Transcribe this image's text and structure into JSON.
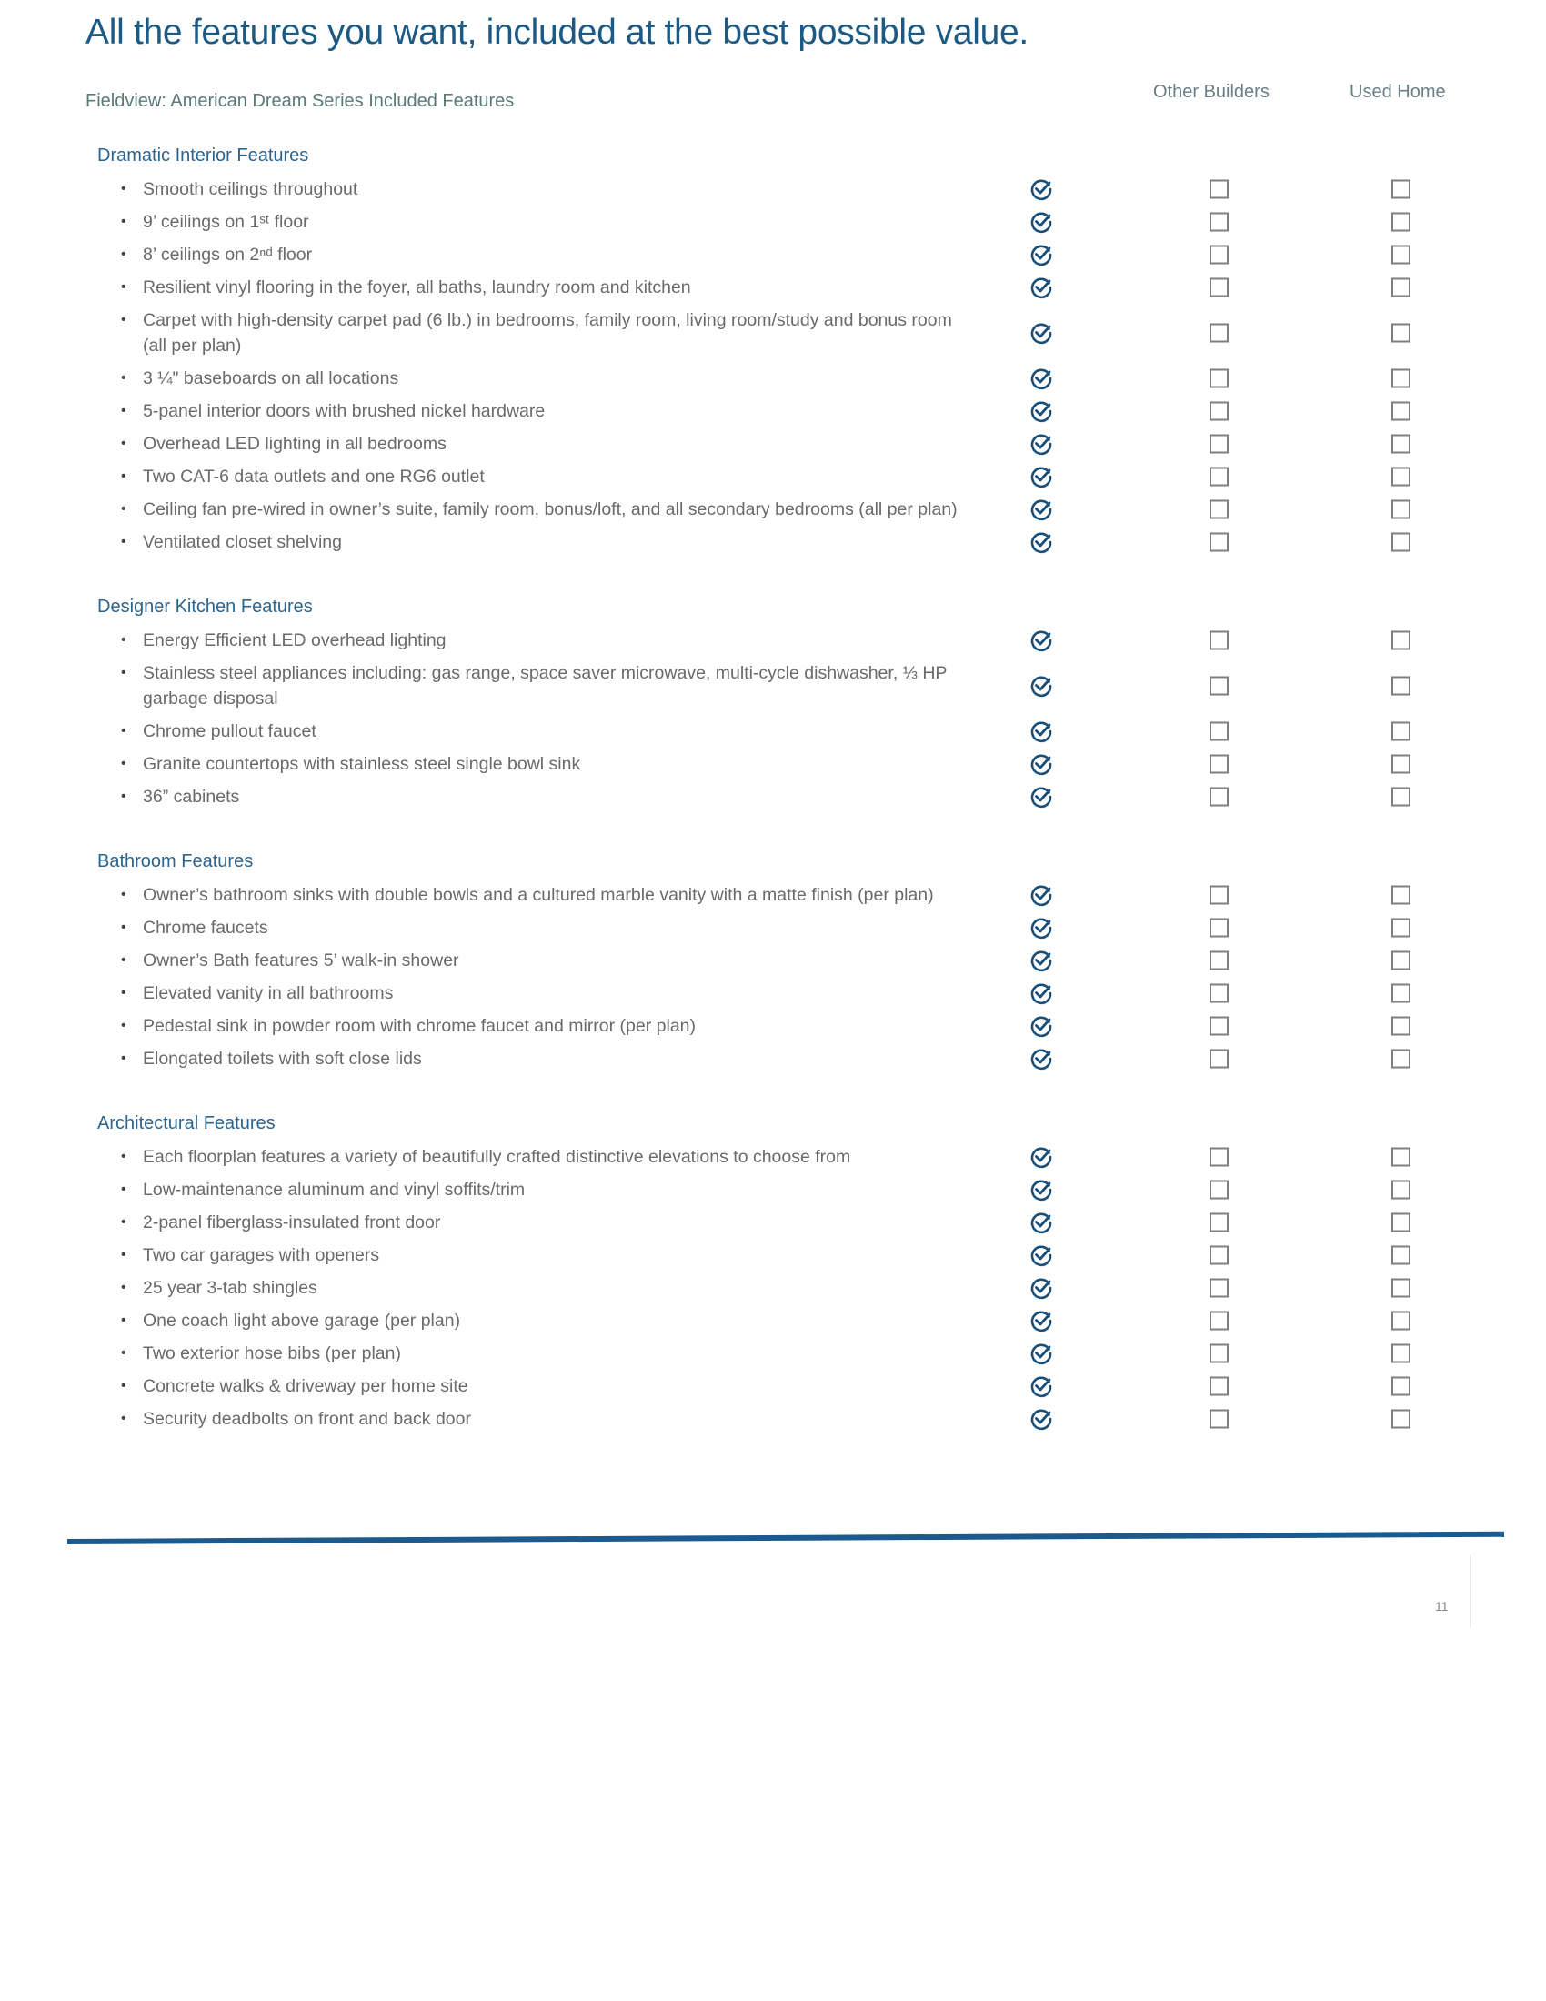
{
  "header": {
    "title": "All the features you want, included at the best possible value.",
    "subtitle": "Fieldview: American Dream Series Included Features",
    "columns": [
      "Other Builders",
      "Used Home"
    ]
  },
  "colors": {
    "accent": "#1c5a86",
    "check": "#1c4f78",
    "text": "#6a6a6a"
  },
  "icons": {
    "included": "circle-check-icon",
    "not_included": "empty-checkbox-icon"
  },
  "sections": [
    {
      "heading": "Dramatic Interior Features",
      "items": [
        "Smooth ceilings throughout",
        "9’ ceilings on 1ˢᵗ floor",
        "8’ ceilings on 2ⁿᵈ floor",
        "Resilient vinyl flooring in the foyer, all baths, laundry room and kitchen",
        "Carpet with high-density carpet pad (6 lb.) in bedrooms, family room, living room/study and bonus room (all per plan)",
        "3 ¼\" baseboards on all locations",
        "5-panel interior doors with brushed nickel hardware",
        "Overhead LED lighting in all bedrooms",
        "Two CAT-6 data outlets and one RG6 outlet",
        "Ceiling fan pre-wired in owner’s suite, family room, bonus/loft, and all secondary bedrooms (all per plan)",
        "Ventilated closet shelving"
      ]
    },
    {
      "heading": "Designer Kitchen Features",
      "items": [
        "Energy Efficient LED overhead lighting",
        "Stainless steel appliances including: gas range, space saver microwave, multi-cycle dishwasher, ⅓ HP garbage disposal",
        "Chrome pullout faucet",
        "Granite countertops with stainless steel single bowl sink",
        "36” cabinets"
      ]
    },
    {
      "heading": "Bathroom Features",
      "items": [
        "Owner’s bathroom sinks with double bowls and a cultured marble vanity with a matte finish (per plan)",
        "Chrome faucets",
        "Owner’s Bath features 5’ walk-in shower",
        "Elevated vanity in all bathrooms",
        "Pedestal sink in powder room with chrome faucet and mirror (per plan)",
        "Elongated toilets with soft close lids"
      ]
    },
    {
      "heading": "Architectural Features",
      "items": [
        "Each floorplan features a variety of beautifully crafted distinctive elevations to choose from",
        "Low-maintenance aluminum and vinyl soffits/trim",
        "2-panel fiberglass-insulated front door",
        "Two car garages with openers",
        "25 year 3-tab shingles",
        "One coach light above garage (per plan)",
        "Two exterior hose bibs (per plan)",
        "Concrete walks & driveway per home site",
        "Security deadbolts on front and back door"
      ]
    }
  ],
  "footer": {
    "page_number": "11"
  }
}
